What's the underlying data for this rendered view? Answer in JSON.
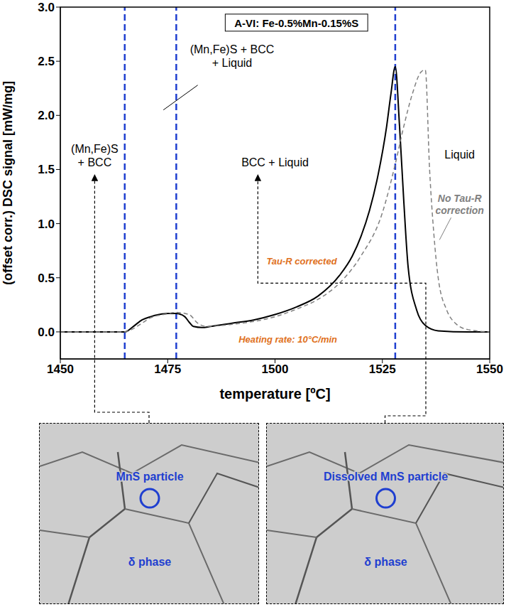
{
  "chart_data": {
    "type": "line",
    "title": "A-VI: Fe-0.5%Mn-0.15%S",
    "x_label": "temperature [ºC]",
    "y_label": "(offset corr.) DSC signal [mW/mg]",
    "xlim": [
      1450,
      1550
    ],
    "xticks": [
      1450,
      1475,
      1500,
      1525,
      1550
    ],
    "ylim": [
      -0.25,
      3.0
    ],
    "yticks": [
      {
        "value": 0,
        "label": "0.0"
      },
      0.5,
      {
        "value": 1,
        "label": "1.0"
      },
      1.5,
      {
        "value": 2,
        "label": "2.0"
      },
      2.5,
      {
        "value": 3,
        "label": "3.0"
      }
    ],
    "grid": false,
    "series": [
      {
        "name": "Tau-R corrected",
        "color": "#000000",
        "line_style": "solid",
        "x": [
          1450,
          1460,
          1465,
          1467,
          1469,
          1471,
          1473,
          1475,
          1477,
          1479,
          1480,
          1481,
          1483,
          1485,
          1490,
          1495,
          1500,
          1505,
          1510,
          1515,
          1518,
          1520,
          1522,
          1524,
          1526,
          1527,
          1528,
          1529,
          1530,
          1531,
          1533,
          1535,
          1538,
          1545,
          1550
        ],
        "values": [
          0,
          0,
          0,
          0.05,
          0.11,
          0.14,
          0.16,
          0.17,
          0.17,
          0.14,
          0.09,
          0.05,
          0.04,
          0.05,
          0.08,
          0.11,
          0.16,
          0.23,
          0.33,
          0.52,
          0.7,
          0.88,
          1.12,
          1.45,
          1.9,
          2.2,
          2.45,
          1.9,
          1.2,
          0.6,
          0.2,
          0.06,
          0.01,
          0,
          0
        ]
      },
      {
        "name": "No Tau-R correction",
        "color": "#808080",
        "line_style": "dashed",
        "x": [
          1450,
          1465,
          1467,
          1469,
          1471,
          1474,
          1477,
          1480,
          1482,
          1484,
          1490,
          1500,
          1505,
          1510,
          1515,
          1520,
          1525,
          1528,
          1530,
          1532,
          1534,
          1535,
          1536,
          1537,
          1538,
          1540,
          1542,
          1545,
          1550
        ],
        "values": [
          0,
          0,
          0.03,
          0.08,
          0.13,
          0.16,
          0.18,
          0.16,
          0.08,
          0.05,
          0.07,
          0.14,
          0.21,
          0.3,
          0.45,
          0.7,
          1.1,
          1.55,
          1.9,
          2.2,
          2.4,
          2.42,
          1.5,
          0.9,
          0.5,
          0.2,
          0.08,
          0.02,
          0
        ]
      }
    ],
    "vlines": [
      1465,
      1477,
      1528
    ],
    "regions": [
      "(Mn,Fe)S + BCC",
      "(Mn,Fe)S + BCC + Liquid",
      "BCC + Liquid",
      "Liquid"
    ],
    "annotations": [
      "Heating rate: 10°C/min"
    ]
  },
  "micrographs": [
    {
      "labels": [
        "MnS particle",
        "δ phase"
      ]
    },
    {
      "labels": [
        "Dissolved MnS particle",
        "δ phase"
      ]
    }
  ]
}
